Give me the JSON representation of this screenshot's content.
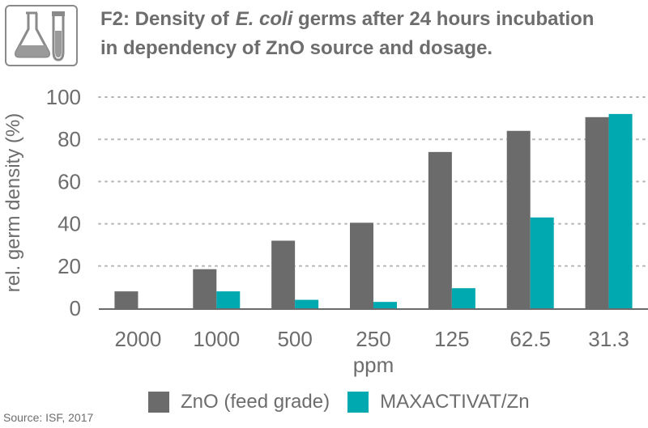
{
  "header": {
    "title_line1_prefix": "F2: Density of",
    "title_line1_italic": "E. coli",
    "title_line1_suffix": " germs after 24 hours incubation",
    "title_line2": "in dependency of ZnO source and dosage."
  },
  "icon": {
    "name": "lab-flask-testtube-icon"
  },
  "colors": {
    "zno": "#6b6b6b",
    "maxactivat": "#00a8b0",
    "grid": "#b5b5b5",
    "text": "#6d6d6d"
  },
  "chart_data": {
    "type": "bar",
    "title": "F2: Density of E. coli germs after 24 hours incubation in dependency of ZnO source and dosage.",
    "xlabel": "ppm",
    "ylabel": "rel. germ density (%)",
    "ylim": [
      0,
      100
    ],
    "yticks": [
      0,
      20,
      40,
      60,
      80,
      100
    ],
    "grid": true,
    "categories": [
      "2000",
      "1000",
      "500",
      "250",
      "125",
      "62.5",
      "31.3"
    ],
    "series": [
      {
        "name": "ZnO (feed grade)",
        "values": [
          8,
          18.5,
          32,
          40.5,
          74,
          84,
          90.5
        ]
      },
      {
        "name": "MAXACTIVAT/Zn",
        "values": [
          0,
          8,
          4,
          3,
          9.5,
          43,
          92
        ]
      }
    ],
    "legend_position": "bottom"
  },
  "footer": {
    "source": "Source: ISF, 2017"
  }
}
